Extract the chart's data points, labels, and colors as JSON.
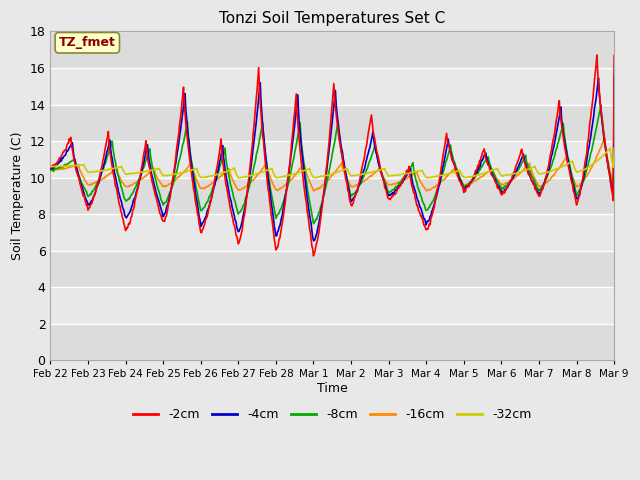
{
  "title": "Tonzi Soil Temperatures Set C",
  "xlabel": "Time",
  "ylabel": "Soil Temperature (C)",
  "ylim": [
    0,
    18
  ],
  "yticks": [
    0,
    2,
    4,
    6,
    8,
    10,
    12,
    14,
    16,
    18
  ],
  "annotation": "TZ_fmet",
  "annotation_color": "#8B0000",
  "annotation_bg": "#FFFFCC",
  "colors": {
    "-2cm": "#FF0000",
    "-4cm": "#0000CC",
    "-8cm": "#00AA00",
    "-16cm": "#FF8C00",
    "-32cm": "#CCCC00"
  },
  "xtick_labels": [
    "Feb 22",
    "Feb 23",
    "Feb 24",
    "Feb 25",
    "Feb 26",
    "Feb 27",
    "Feb 28",
    "Mar 1",
    "Mar 2",
    "Mar 3",
    "Mar 4",
    "Mar 5",
    "Mar 6",
    "Mar 7",
    "Mar 8",
    "Mar 9"
  ],
  "linewidth": 1.2,
  "background_color": "#E8E8E8",
  "band_colors": [
    "#DCDCDC",
    "#E8E8E8"
  ],
  "grid_color": "#FFFFFF"
}
